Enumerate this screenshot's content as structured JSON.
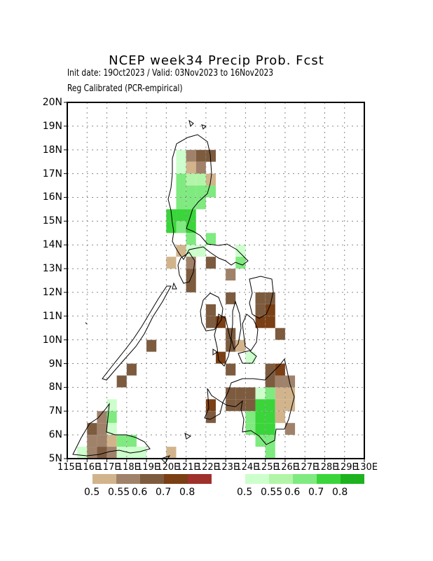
{
  "title": "NCEP week34 Precip Prob. Fcst",
  "subtitle": "Init date: 19Oct2023 / Valid: 03Nov2023 to 16Nov2023",
  "method": "Reg Calibrated (PCR-empirical)",
  "map": {
    "lon_range": [
      115,
      130
    ],
    "lat_range": [
      5,
      20
    ],
    "lon_ticks": [
      "115E",
      "116E",
      "117E",
      "118E",
      "119E",
      "120E",
      "121E",
      "122E",
      "123E",
      "124E",
      "125E",
      "126E",
      "127E",
      "128E",
      "129E",
      "130E"
    ],
    "lat_ticks": [
      "5N",
      "6N",
      "7N",
      "8N",
      "9N",
      "10N",
      "11N",
      "12N",
      "13N",
      "14N",
      "15N",
      "16N",
      "17N",
      "18N",
      "19N",
      "20N"
    ],
    "grid": "dotted"
  },
  "legend": {
    "dry_labels": [
      "0.5",
      "0.55",
      "0.6",
      "0.7",
      "0.8"
    ],
    "wet_labels": [
      "0.5",
      "0.55",
      "0.6",
      "0.7",
      "0.8"
    ],
    "dry_colors": [
      "#d2b48c",
      "#a0826a",
      "#7d5b3f",
      "#7a3f14",
      "#a0302c"
    ],
    "wet_colors": [
      "#ccffcc",
      "#b3f5a8",
      "#7fea7f",
      "#3ad53a",
      "#1eb31e"
    ]
  },
  "chart_data": {
    "type": "heatmap",
    "title": "NCEP week34 Precip Prob. Fcst",
    "grid_resolution_deg": 0.5,
    "cells": [
      {
        "lon": 120.5,
        "lat": 17.5,
        "cat": "wet_light"
      },
      {
        "lon": 121.0,
        "lat": 17.5,
        "cat": "dry1"
      },
      {
        "lon": 121.5,
        "lat": 17.5,
        "cat": "dry2"
      },
      {
        "lon": 122.0,
        "lat": 17.5,
        "cat": "dry2"
      },
      {
        "lon": 120.5,
        "lat": 17.0,
        "cat": "wet_light"
      },
      {
        "lon": 121.0,
        "lat": 17.0,
        "cat": "dry0"
      },
      {
        "lon": 121.5,
        "lat": 17.0,
        "cat": "dry1"
      },
      {
        "lon": 120.5,
        "lat": 16.5,
        "cat": "wet2"
      },
      {
        "lon": 121.0,
        "lat": 16.5,
        "cat": "wet0"
      },
      {
        "lon": 121.5,
        "lat": 16.5,
        "cat": "wet0"
      },
      {
        "lon": 122.0,
        "lat": 16.5,
        "cat": "dry0"
      },
      {
        "lon": 120.5,
        "lat": 16.0,
        "cat": "wet1"
      },
      {
        "lon": 121.0,
        "lat": 16.0,
        "cat": "wet2"
      },
      {
        "lon": 121.5,
        "lat": 16.0,
        "cat": "wet2"
      },
      {
        "lon": 122.0,
        "lat": 16.0,
        "cat": "wet2"
      },
      {
        "lon": 120.5,
        "lat": 15.5,
        "cat": "wet2"
      },
      {
        "lon": 121.0,
        "lat": 15.5,
        "cat": "wet2"
      },
      {
        "lon": 121.5,
        "lat": 15.5,
        "cat": "wet2"
      },
      {
        "lon": 120.0,
        "lat": 15.0,
        "cat": "wet3"
      },
      {
        "lon": 120.5,
        "lat": 15.0,
        "cat": "wet3"
      },
      {
        "lon": 121.0,
        "lat": 15.0,
        "cat": "wet3"
      },
      {
        "lon": 120.0,
        "lat": 14.5,
        "cat": "wet3"
      },
      {
        "lon": 120.5,
        "lat": 14.5,
        "cat": "wet1"
      },
      {
        "lon": 121.0,
        "lat": 14.5,
        "cat": "wet3"
      },
      {
        "lon": 121.0,
        "lat": 14.0,
        "cat": "wet2"
      },
      {
        "lon": 122.0,
        "lat": 14.0,
        "cat": "wet2"
      },
      {
        "lon": 120.5,
        "lat": 13.5,
        "cat": "dry0"
      },
      {
        "lon": 121.0,
        "lat": 13.5,
        "cat": "wet_light"
      },
      {
        "lon": 121.5,
        "lat": 13.5,
        "cat": "wet_light"
      },
      {
        "lon": 123.5,
        "lat": 13.5,
        "cat": "wet_light"
      },
      {
        "lon": 120.0,
        "lat": 13.0,
        "cat": "dry0"
      },
      {
        "lon": 121.0,
        "lat": 13.0,
        "cat": "dry1"
      },
      {
        "lon": 122.0,
        "lat": 13.0,
        "cat": "dry2"
      },
      {
        "lon": 123.5,
        "lat": 13.0,
        "cat": "wet1"
      },
      {
        "lon": 121.0,
        "lat": 12.5,
        "cat": "dry2"
      },
      {
        "lon": 123.0,
        "lat": 12.5,
        "cat": "dry1"
      },
      {
        "lon": 121.0,
        "lat": 12.0,
        "cat": "dry2"
      },
      {
        "lon": 124.5,
        "lat": 11.5,
        "cat": "dry2"
      },
      {
        "lon": 125.0,
        "lat": 11.5,
        "cat": "dry2"
      },
      {
        "lon": 123.0,
        "lat": 11.5,
        "cat": "dry2"
      },
      {
        "lon": 124.5,
        "lat": 11.0,
        "cat": "dry2"
      },
      {
        "lon": 125.0,
        "lat": 11.0,
        "cat": "dry3"
      },
      {
        "lon": 122.0,
        "lat": 11.0,
        "cat": "dry2"
      },
      {
        "lon": 122.0,
        "lat": 10.5,
        "cat": "dry2"
      },
      {
        "lon": 122.5,
        "lat": 10.5,
        "cat": "dry3"
      },
      {
        "lon": 124.5,
        "lat": 10.5,
        "cat": "dry3"
      },
      {
        "lon": 125.0,
        "lat": 10.5,
        "cat": "dry3"
      },
      {
        "lon": 125.5,
        "lat": 10.0,
        "cat": "dry2"
      },
      {
        "lon": 123.0,
        "lat": 10.0,
        "cat": "dry2"
      },
      {
        "lon": 123.0,
        "lat": 9.5,
        "cat": "dry2"
      },
      {
        "lon": 123.5,
        "lat": 9.5,
        "cat": "dry0"
      },
      {
        "lon": 119.0,
        "lat": 9.5,
        "cat": "dry2"
      },
      {
        "lon": 122.5,
        "lat": 9.0,
        "cat": "dry3"
      },
      {
        "lon": 124.0,
        "lat": 9.0,
        "cat": "wet_light"
      },
      {
        "lon": 123.0,
        "lat": 8.5,
        "cat": "dry2"
      },
      {
        "lon": 118.0,
        "lat": 8.5,
        "cat": "dry2"
      },
      {
        "lon": 125.0,
        "lat": 8.5,
        "cat": "dry2"
      },
      {
        "lon": 125.5,
        "lat": 8.5,
        "cat": "dry3"
      },
      {
        "lon": 117.5,
        "lat": 8.0,
        "cat": "dry2"
      },
      {
        "lon": 125.0,
        "lat": 8.0,
        "cat": "dry2"
      },
      {
        "lon": 125.5,
        "lat": 8.0,
        "cat": "dry1"
      },
      {
        "lon": 126.0,
        "lat": 8.0,
        "cat": "dry1"
      },
      {
        "lon": 123.0,
        "lat": 7.5,
        "cat": "dry2"
      },
      {
        "lon": 123.5,
        "lat": 7.5,
        "cat": "dry2"
      },
      {
        "lon": 124.0,
        "lat": 7.5,
        "cat": "dry2"
      },
      {
        "lon": 124.5,
        "lat": 7.5,
        "cat": "wet_light"
      },
      {
        "lon": 125.0,
        "lat": 7.5,
        "cat": "wet1"
      },
      {
        "lon": 125.5,
        "lat": 7.5,
        "cat": "dry0"
      },
      {
        "lon": 126.0,
        "lat": 7.5,
        "cat": "dry0"
      },
      {
        "lon": 122.0,
        "lat": 7.0,
        "cat": "dry3"
      },
      {
        "lon": 123.0,
        "lat": 7.0,
        "cat": "dry2"
      },
      {
        "lon": 123.5,
        "lat": 7.0,
        "cat": "dry2"
      },
      {
        "lon": 124.0,
        "lat": 7.0,
        "cat": "dry2"
      },
      {
        "lon": 124.5,
        "lat": 7.0,
        "cat": "wet3"
      },
      {
        "lon": 125.0,
        "lat": 7.0,
        "cat": "wet3"
      },
      {
        "lon": 125.5,
        "lat": 7.0,
        "cat": "dry0"
      },
      {
        "lon": 126.0,
        "lat": 7.0,
        "cat": "dry0"
      },
      {
        "lon": 122.0,
        "lat": 6.5,
        "cat": "dry2"
      },
      {
        "lon": 124.0,
        "lat": 6.5,
        "cat": "wet2"
      },
      {
        "lon": 124.5,
        "lat": 6.5,
        "cat": "wet3"
      },
      {
        "lon": 125.0,
        "lat": 6.5,
        "cat": "wet3"
      },
      {
        "lon": 125.5,
        "lat": 6.5,
        "cat": "dry0"
      },
      {
        "lon": 117.0,
        "lat": 7.0,
        "cat": "wet_light"
      },
      {
        "lon": 117.0,
        "lat": 6.5,
        "cat": "wet1"
      },
      {
        "lon": 116.5,
        "lat": 6.5,
        "cat": "dry1"
      },
      {
        "lon": 124.0,
        "lat": 6.0,
        "cat": "wet2"
      },
      {
        "lon": 124.5,
        "lat": 6.0,
        "cat": "wet3"
      },
      {
        "lon": 125.0,
        "lat": 6.0,
        "cat": "wet3"
      },
      {
        "lon": 126.0,
        "lat": 6.0,
        "cat": "dry1"
      },
      {
        "lon": 116.0,
        "lat": 6.0,
        "cat": "dry2"
      },
      {
        "lon": 116.5,
        "lat": 6.0,
        "cat": "dry1"
      },
      {
        "lon": 117.0,
        "lat": 6.0,
        "cat": "wet_light"
      },
      {
        "lon": 116.0,
        "lat": 5.5,
        "cat": "dry1"
      },
      {
        "lon": 116.5,
        "lat": 5.5,
        "cat": "dry1"
      },
      {
        "lon": 117.0,
        "lat": 5.5,
        "cat": "dry0"
      },
      {
        "lon": 117.5,
        "lat": 5.5,
        "cat": "wet2"
      },
      {
        "lon": 118.0,
        "lat": 5.5,
        "cat": "wet2"
      },
      {
        "lon": 124.5,
        "lat": 5.5,
        "cat": "wet2"
      },
      {
        "lon": 125.0,
        "lat": 5.5,
        "cat": "wet2"
      },
      {
        "lon": 115.5,
        "lat": 5.0,
        "cat": "wet_light"
      },
      {
        "lon": 116.0,
        "lat": 5.0,
        "cat": "dry1"
      },
      {
        "lon": 116.5,
        "lat": 5.0,
        "cat": "dry2"
      },
      {
        "lon": 117.0,
        "lat": 5.0,
        "cat": "dry1"
      },
      {
        "lon": 117.5,
        "lat": 5.0,
        "cat": "wet_light"
      },
      {
        "lon": 118.0,
        "lat": 5.0,
        "cat": "wet_light"
      },
      {
        "lon": 118.5,
        "lat": 5.0,
        "cat": "wet_light"
      },
      {
        "lon": 120.0,
        "lat": 5.0,
        "cat": "dry0"
      },
      {
        "lon": 125.0,
        "lat": 5.0,
        "cat": "wet2"
      }
    ]
  }
}
